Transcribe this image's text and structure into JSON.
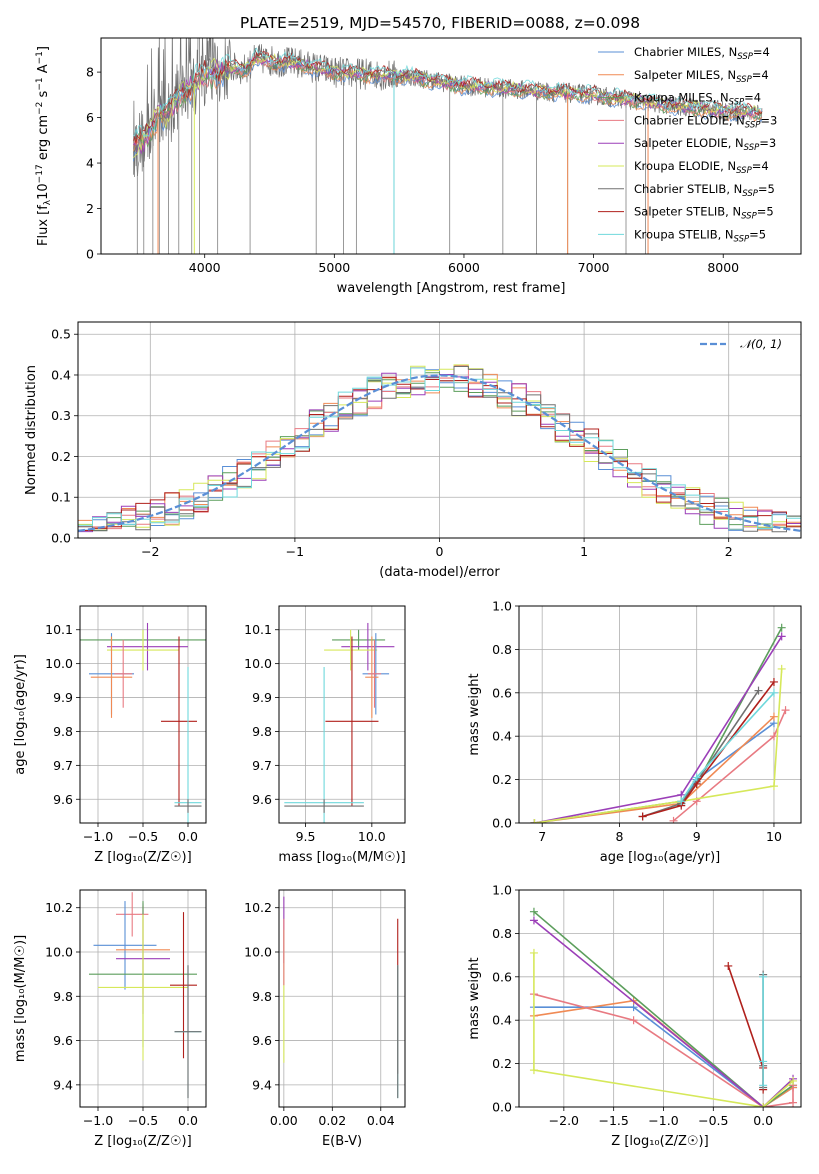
{
  "title": "PLATE=2519, MJD=54570, FIBERID=0088, z=0.098",
  "palette": {
    "Chabrier MILES": "#5a8fd6",
    "Salpeter MILES": "#f08a54",
    "Kroupa MILES": "#5c9e5c",
    "Chabrier ELODIE": "#e87a82",
    "Salpeter ELODIE": "#9b3fb8",
    "Kroupa ELODIE": "#d6e85a",
    "Chabrier STELIB": "#707070",
    "Salpeter STELIB": "#b0201c",
    "Kroupa STELIB": "#6fd8dc"
  },
  "legend_spectrum": [
    {
      "name": "Chabrier MILES",
      "nssp": "4"
    },
    {
      "name": "Salpeter MILES",
      "nssp": "4"
    },
    {
      "name": "Kroupa MILES",
      "nssp": "4"
    },
    {
      "name": "Chabrier ELODIE",
      "nssp": "3"
    },
    {
      "name": "Salpeter ELODIE",
      "nssp": "3"
    },
    {
      "name": "Kroupa ELODIE",
      "nssp": "4"
    },
    {
      "name": "Chabrier STELIB",
      "nssp": "5"
    },
    {
      "name": "Salpeter STELIB",
      "nssp": "5"
    },
    {
      "name": "Kroupa STELIB",
      "nssp": "5"
    }
  ],
  "chart_data": [
    {
      "id": "spectrum",
      "type": "line",
      "xlabel": "wavelength [Angstrom, rest frame]",
      "ylabel_parts": [
        "Flux [f",
        "λ",
        "10",
        "−17",
        " erg cm",
        "−2",
        " s",
        "−1",
        " A",
        "−1",
        "]"
      ],
      "xlim": [
        3200,
        8600
      ],
      "ylim": [
        0,
        9.5
      ],
      "xticks": [
        4000,
        5000,
        6000,
        7000,
        8000
      ],
      "yticks": [
        0,
        2,
        4,
        6,
        8
      ],
      "continuum_x": [
        3450,
        3550,
        3650,
        3700,
        3800,
        3900,
        4000,
        4100,
        4200,
        4300,
        4400,
        4500,
        4700,
        5000,
        5300,
        5600,
        6000,
        6500,
        7000,
        7500,
        8000,
        8300
      ],
      "continuum_y": [
        4.7,
        5.1,
        6.3,
        6.0,
        7.0,
        7.4,
        7.9,
        8.0,
        8.2,
        8.1,
        8.6,
        8.5,
        8.4,
        8.0,
        7.9,
        7.8,
        7.4,
        7.2,
        7.0,
        6.6,
        6.3,
        6.2
      ],
      "data_spikes": [
        3480,
        3530,
        3600,
        3650,
        3720,
        3800,
        3900,
        3960,
        4100,
        4350,
        4860,
        5070,
        5170,
        5460,
        5890,
        6300,
        6560,
        6800,
        7250,
        7400
      ]
    },
    {
      "id": "residuals",
      "type": "step-histogram",
      "xlabel": "(data-model)/error",
      "ylabel": "Normed distribution",
      "xlim": [
        -2.5,
        2.5
      ],
      "ylim": [
        0,
        0.53
      ],
      "xticks": [
        -2,
        -1,
        0,
        1,
        2
      ],
      "xtick_labels": [
        "−2",
        "−1",
        "0",
        "1",
        "2"
      ],
      "yticks": [
        0.0,
        0.1,
        0.2,
        0.3,
        0.4,
        0.5
      ],
      "ytick_labels": [
        "0.0",
        "0.1",
        "0.2",
        "0.3",
        "0.4",
        "0.5"
      ],
      "legend": "𝒩(0, 1)",
      "bin_width": 0.1,
      "gaussian_mu": 0,
      "gaussian_sigma": 1
    },
    {
      "id": "age-vs-Z",
      "type": "errorbar",
      "xlabel": "Z [log₁₀(Z/Z☉)]",
      "ylabel": "age  [log₁₀(age/yr)]",
      "xlim": [
        -1.2,
        0.2
      ],
      "ylim": [
        9.53,
        10.17
      ],
      "xticks": [
        -1.0,
        -0.5,
        0.0
      ],
      "xtick_labels": [
        "−1.0",
        "−0.5",
        "0.0"
      ],
      "yticks": [
        9.6,
        9.7,
        9.8,
        9.9,
        10.0,
        10.1
      ],
      "ytick_labels": [
        "9.6",
        "9.7",
        "9.8",
        "9.9",
        "10.0",
        "10.1"
      ],
      "points": [
        {
          "series": "Kroupa MILES",
          "x": -0.5,
          "xerr": 0.7,
          "y": 10.07,
          "yerr": 0.03
        },
        {
          "series": "Salpeter ELODIE",
          "x": -0.45,
          "xerr": 0.45,
          "y": 10.05,
          "yerr": 0.07
        },
        {
          "series": "Kroupa ELODIE",
          "x": -0.5,
          "xerr": 0.4,
          "y": 10.04,
          "yerr": 0.06
        },
        {
          "series": "Chabrier MILES",
          "x": -0.85,
          "xerr": 0.25,
          "y": 9.97,
          "yerr": 0.12
        },
        {
          "series": "Salpeter MILES",
          "x": -0.85,
          "xerr": 0.23,
          "y": 9.96,
          "yerr": 0.12
        },
        {
          "series": "Chabrier ELODIE",
          "x": -0.72,
          "xerr": 0.1,
          "y": 9.97,
          "yerr": 0.1
        },
        {
          "series": "Salpeter STELIB",
          "x": -0.1,
          "xerr": 0.2,
          "y": 9.83,
          "yerr": 0.25
        },
        {
          "series": "Kroupa STELIB",
          "x": 0.0,
          "xerr": 0.15,
          "y": 9.59,
          "yerr": 0.4
        },
        {
          "series": "Chabrier STELIB",
          "x": 0.0,
          "xerr": 0.15,
          "y": 9.58,
          "yerr": 0.02
        }
      ]
    },
    {
      "id": "age-vs-mass",
      "type": "errorbar",
      "xlabel": "mass [log₁₀(M/M☉)]",
      "ylabel": "",
      "xlim": [
        9.3,
        10.25
      ],
      "ylim": [
        9.53,
        10.17
      ],
      "xticks": [
        9.5,
        10.0
      ],
      "xtick_labels": [
        "9.5",
        "10.0"
      ],
      "yticks": [
        9.6,
        9.7,
        9.8,
        9.9,
        10.0,
        10.1
      ],
      "ytick_labels": [
        "9.6",
        "9.7",
        "9.8",
        "9.9",
        "10.0",
        "10.1"
      ],
      "points": [
        {
          "series": "Kroupa MILES",
          "x": 9.9,
          "xerr": 0.2,
          "y": 10.07,
          "yerr": 0.03
        },
        {
          "series": "Salpeter ELODIE",
          "x": 9.97,
          "xerr": 0.2,
          "y": 10.05,
          "yerr": 0.07
        },
        {
          "series": "Kroupa ELODIE",
          "x": 9.84,
          "xerr": 0.2,
          "y": 10.04,
          "yerr": 0.06
        },
        {
          "series": "Chabrier MILES",
          "x": 10.03,
          "xerr": 0.1,
          "y": 9.97,
          "yerr": 0.12
        },
        {
          "series": "Salpeter MILES",
          "x": 10.0,
          "xerr": 0.05,
          "y": 9.96,
          "yerr": 0.12
        },
        {
          "series": "Chabrier ELODIE",
          "x": 10.02,
          "xerr": 0.05,
          "y": 9.97,
          "yerr": 0.1
        },
        {
          "series": "Salpeter STELIB",
          "x": 9.85,
          "xerr": 0.2,
          "y": 9.83,
          "yerr": 0.25
        },
        {
          "series": "Kroupa STELIB",
          "x": 9.64,
          "xerr": 0.3,
          "y": 9.59,
          "yerr": 0.4
        },
        {
          "series": "Chabrier STELIB",
          "x": 9.64,
          "xerr": 0.3,
          "y": 9.58,
          "yerr": 0.02
        }
      ]
    },
    {
      "id": "massweight-vs-age",
      "type": "line",
      "xlabel": "age  [log₁₀(age/yr)]",
      "ylabel": "mass weight",
      "xlim": [
        6.7,
        10.35
      ],
      "ylim": [
        0,
        1.0
      ],
      "xticks": [
        7,
        8,
        9,
        10
      ],
      "xtick_labels": [
        "7",
        "8",
        "9",
        "10"
      ],
      "yticks": [
        0.0,
        0.2,
        0.4,
        0.6,
        0.8,
        1.0
      ],
      "ytick_labels": [
        "0.0",
        "0.2",
        "0.4",
        "0.6",
        "0.8",
        "1.0"
      ],
      "series": [
        {
          "name": "Chabrier MILES",
          "x": [
            8.8,
            9.0,
            10.0
          ],
          "y": [
            0.09,
            0.2,
            0.46
          ]
        },
        {
          "name": "Salpeter MILES",
          "x": [
            6.9,
            8.8,
            10.0
          ],
          "y": [
            0.0,
            0.09,
            0.49
          ]
        },
        {
          "name": "Kroupa MILES",
          "x": [
            6.9,
            8.8,
            9.0,
            10.1
          ],
          "y": [
            0.0,
            0.1,
            0.18,
            0.9
          ]
        },
        {
          "name": "Chabrier ELODIE",
          "x": [
            8.7,
            9.0,
            10.0,
            10.15
          ],
          "y": [
            0.01,
            0.1,
            0.4,
            0.52
          ]
        },
        {
          "name": "Salpeter ELODIE",
          "x": [
            6.9,
            8.8,
            10.1
          ],
          "y": [
            0.0,
            0.13,
            0.86
          ]
        },
        {
          "name": "Kroupa ELODIE",
          "x": [
            6.9,
            8.8,
            10.0,
            10.1
          ],
          "y": [
            0.0,
            0.1,
            0.17,
            0.71
          ]
        },
        {
          "name": "Chabrier STELIB",
          "x": [
            8.3,
            8.8,
            9.0,
            9.8
          ],
          "y": [
            0.03,
            0.09,
            0.19,
            0.61
          ]
        },
        {
          "name": "Salpeter STELIB",
          "x": [
            8.3,
            8.8,
            9.0,
            10.0
          ],
          "y": [
            0.03,
            0.08,
            0.18,
            0.65
          ]
        },
        {
          "name": "Kroupa STELIB",
          "x": [
            8.8,
            9.0,
            10.0
          ],
          "y": [
            0.1,
            0.21,
            0.6
          ]
        }
      ]
    },
    {
      "id": "mass-vs-Z",
      "type": "errorbar",
      "xlabel": "Z [log₁₀(Z/Z☉)]",
      "ylabel": "mass [log₁₀(M/M☉)]",
      "xlim": [
        -1.2,
        0.2
      ],
      "ylim": [
        9.3,
        10.28
      ],
      "xticks": [
        -1.0,
        -0.5,
        0.0
      ],
      "xtick_labels": [
        "−1.0",
        "−0.5",
        "0.0"
      ],
      "yticks": [
        9.4,
        9.6,
        9.8,
        10.0,
        10.2
      ],
      "ytick_labels": [
        "9.4",
        "9.6",
        "9.8",
        "10.0",
        "10.2"
      ],
      "points": [
        {
          "series": "Chabrier ELODIE",
          "x": -0.62,
          "xerr": 0.18,
          "y": 10.17,
          "yerr": 0.1
        },
        {
          "series": "Chabrier MILES",
          "x": -0.7,
          "xerr": 0.35,
          "y": 10.03,
          "yerr": 0.2
        },
        {
          "series": "Salpeter MILES",
          "x": -0.5,
          "xerr": 0.3,
          "y": 10.01,
          "yerr": 0.2
        },
        {
          "series": "Salpeter ELODIE",
          "x": -0.5,
          "xerr": 0.3,
          "y": 9.97,
          "yerr": 0.25
        },
        {
          "series": "Kroupa MILES",
          "x": -0.5,
          "xerr": 0.6,
          "y": 9.9,
          "yerr": 0.33
        },
        {
          "series": "Kroupa ELODIE",
          "x": -0.5,
          "xerr": 0.5,
          "y": 9.84,
          "yerr": 0.33
        },
        {
          "series": "Salpeter STELIB",
          "x": -0.05,
          "xerr": 0.15,
          "y": 9.85,
          "yerr": 0.33
        },
        {
          "series": "Kroupa STELIB",
          "x": 0.0,
          "xerr": 0.15,
          "y": 9.64,
          "yerr": 0.3
        },
        {
          "series": "Chabrier STELIB",
          "x": 0.0,
          "xerr": 0.15,
          "y": 9.64,
          "yerr": 0.3
        }
      ]
    },
    {
      "id": "mass-vs-EBV",
      "type": "errorbar",
      "xlabel": "E(B-V)",
      "ylabel": "",
      "xlim": [
        -0.002,
        0.05
      ],
      "ylim": [
        9.3,
        10.28
      ],
      "xticks": [
        0.0,
        0.02,
        0.04
      ],
      "xtick_labels": [
        "0.00",
        "0.02",
        "0.04"
      ],
      "yticks": [
        9.4,
        9.6,
        9.8,
        10.0,
        10.2
      ],
      "ytick_labels": [
        "9.4",
        "9.6",
        "9.8",
        "10.0",
        "10.2"
      ],
      "points": [
        {
          "series": "Salpeter ELODIE",
          "x": 0.0,
          "xerr": 0,
          "y": 10.1,
          "yerr": 0.15
        },
        {
          "series": "Kroupa ELODIE",
          "x": 0.0,
          "xerr": 0,
          "y": 9.8,
          "yerr": 0.3
        },
        {
          "series": "Chabrier ELODIE",
          "x": 0.0,
          "xerr": 0,
          "y": 10.0,
          "yerr": 0.15
        },
        {
          "series": "Salpeter STELIB",
          "x": 0.047,
          "xerr": 0,
          "y": 9.8,
          "yerr": 0.35
        },
        {
          "series": "Kroupa STELIB",
          "x": 0.047,
          "xerr": 0,
          "y": 9.64,
          "yerr": 0.3
        },
        {
          "series": "Chabrier STELIB",
          "x": 0.047,
          "xerr": 0,
          "y": 9.64,
          "yerr": 0.3
        }
      ]
    },
    {
      "id": "massweight-vs-Z",
      "type": "line",
      "xlabel": "Z [log₁₀(Z/Z☉)]",
      "ylabel": "mass weight",
      "xlim": [
        -2.45,
        0.38
      ],
      "ylim": [
        0,
        1.0
      ],
      "xticks": [
        -2.0,
        -1.5,
        -1.0,
        -0.5,
        0.0
      ],
      "xtick_labels": [
        "−2.0",
        "−1.5",
        "−1.0",
        "−0.5",
        "0.0"
      ],
      "yticks": [
        0.0,
        0.2,
        0.4,
        0.6,
        0.8,
        1.0
      ],
      "ytick_labels": [
        "0.0",
        "0.2",
        "0.4",
        "0.6",
        "0.8",
        "1.0"
      ],
      "series": [
        {
          "name": "Chabrier MILES",
          "x": [
            -2.3,
            -1.3,
            0.0,
            0.3
          ],
          "y": [
            0.46,
            0.46,
            0.0,
            0.09
          ]
        },
        {
          "name": "Salpeter MILES",
          "x": [
            -2.3,
            -1.3,
            0.0,
            0.3
          ],
          "y": [
            0.42,
            0.49,
            0.0,
            0.09
          ]
        },
        {
          "name": "Kroupa MILES",
          "x": [
            -2.3,
            0.0,
            0.3
          ],
          "y": [
            0.9,
            0.0,
            0.1
          ]
        },
        {
          "name": "Chabrier ELODIE",
          "x": [
            -2.3,
            -1.3,
            0.0,
            0.3,
            0.3
          ],
          "y": [
            0.52,
            0.4,
            0.0,
            0.02,
            0.1
          ]
        },
        {
          "name": "Salpeter ELODIE",
          "x": [
            -2.3,
            0.0,
            0.3
          ],
          "y": [
            0.86,
            0.0,
            0.13
          ]
        },
        {
          "name": "Kroupa ELODIE",
          "x": [
            -2.3,
            -2.3,
            0.0,
            0.3
          ],
          "y": [
            0.71,
            0.17,
            0.0,
            0.12
          ]
        },
        {
          "name": "Chabrier STELIB",
          "x": [
            0.0,
            0.0,
            0.0
          ],
          "y": [
            0.61,
            0.19,
            0.09
          ]
        },
        {
          "name": "Salpeter STELIB",
          "x": [
            -0.35,
            0.0,
            0.0
          ],
          "y": [
            0.65,
            0.18,
            0.08
          ]
        },
        {
          "name": "Kroupa STELIB",
          "x": [
            0.0,
            0.0,
            0.0
          ],
          "y": [
            0.6,
            0.21,
            0.1
          ]
        }
      ]
    }
  ]
}
